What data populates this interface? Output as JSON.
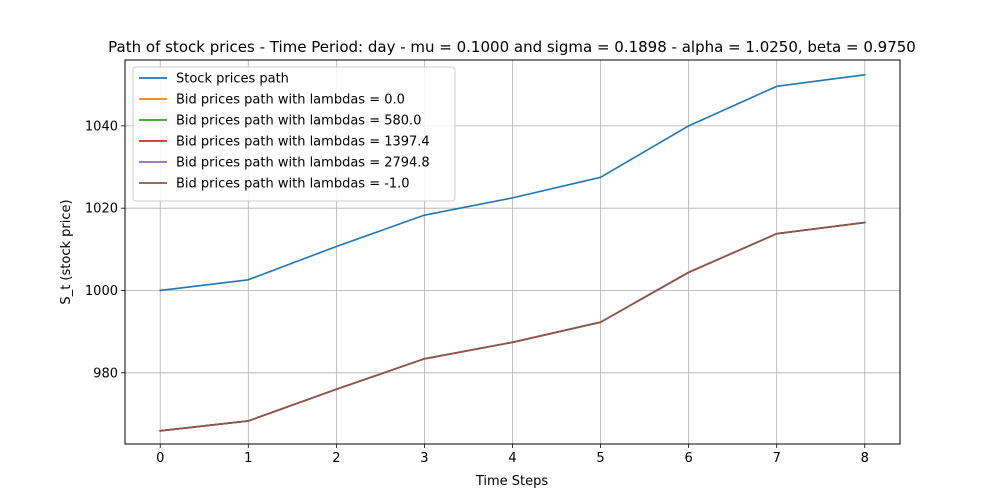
{
  "chart_data": {
    "type": "line",
    "title": "Path of stock prices - Time Period: day - mu = 0.1000 and sigma = 0.1898 - alpha = 1.0250, beta = 0.9750",
    "xlabel": "Time Steps",
    "ylabel": "S_t (stock price)",
    "x": [
      0,
      1,
      2,
      3,
      4,
      5,
      6,
      7,
      8
    ],
    "xlim": [
      -0.4,
      8.4
    ],
    "ylim": [
      962.7,
      1056.0
    ],
    "xticks": [
      0,
      1,
      2,
      3,
      4,
      5,
      6,
      7,
      8
    ],
    "yticks": [
      980,
      1000,
      1020,
      1040
    ],
    "grid": true,
    "legend_position": "top-left",
    "series": [
      {
        "name": "Stock prices path",
        "color": "#1f77b4",
        "values": [
          1000.0,
          1002.6,
          1010.7,
          1018.3,
          1022.5,
          1027.5,
          1040.0,
          1049.6,
          1052.4
        ]
      },
      {
        "name": "Bid prices path with lambdas = 0.0",
        "color": "#ff7f0e",
        "values": [
          965.9,
          968.3,
          976.0,
          983.4,
          987.4,
          992.3,
          1004.4,
          1013.8,
          1016.5
        ]
      },
      {
        "name": "Bid prices path with lambdas = 580.0",
        "color": "#2ca02c",
        "values": [
          965.9,
          968.3,
          976.0,
          983.4,
          987.4,
          992.3,
          1004.4,
          1013.8,
          1016.5
        ]
      },
      {
        "name": "Bid prices path with lambdas = 1397.4",
        "color": "#d62728",
        "values": [
          965.9,
          968.3,
          976.0,
          983.4,
          987.4,
          992.3,
          1004.4,
          1013.8,
          1016.5
        ]
      },
      {
        "name": "Bid prices path with lambdas = 2794.8",
        "color": "#9467bd",
        "values": [
          965.9,
          968.3,
          976.0,
          983.4,
          987.4,
          992.3,
          1004.4,
          1013.8,
          1016.5
        ]
      },
      {
        "name": "Bid prices path with lambdas = -1.0",
        "color": "#8c564b",
        "values": [
          965.9,
          968.3,
          976.0,
          983.4,
          987.4,
          992.3,
          1004.4,
          1013.8,
          1016.5
        ]
      }
    ]
  }
}
